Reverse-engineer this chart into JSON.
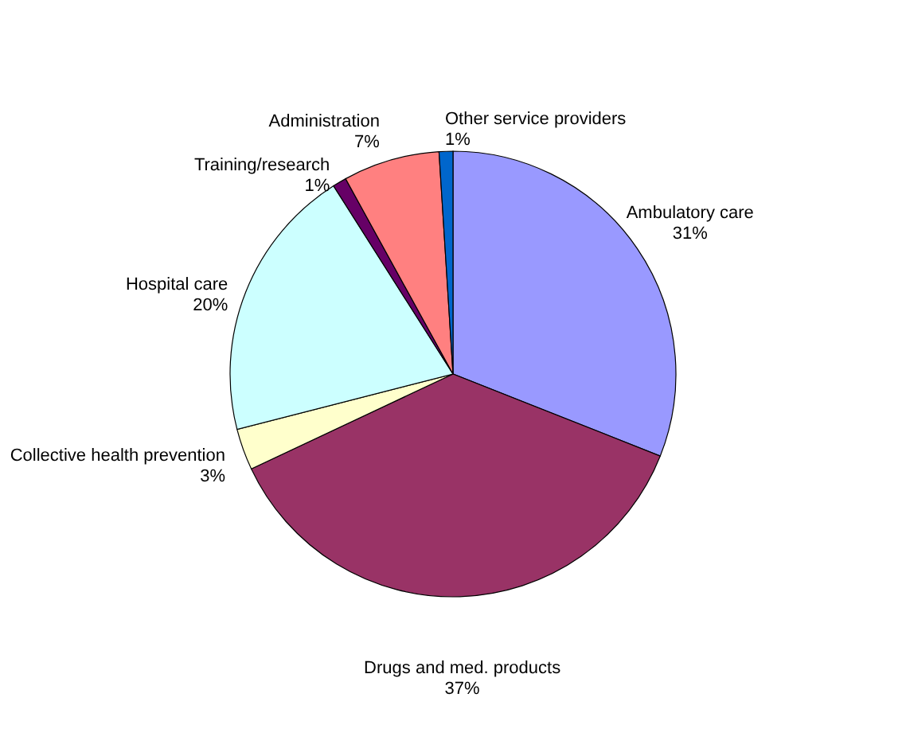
{
  "chart_data": {
    "type": "pie",
    "categories": [
      "Ambulatory care",
      "Drugs and med. products",
      "Collective health prevention",
      "Hospital care",
      "Training/research",
      "Administration",
      "Other service providers"
    ],
    "values": [
      31,
      37,
      3,
      20,
      1,
      7,
      1
    ],
    "value_labels": [
      "31%",
      "37%",
      "3%",
      "20%",
      "1%",
      "7%",
      "1%"
    ],
    "colors": [
      "#9999ff",
      "#993366",
      "#ffffcc",
      "#ccffff",
      "#660066",
      "#ff8080",
      "#0066cc"
    ],
    "legend": false
  }
}
